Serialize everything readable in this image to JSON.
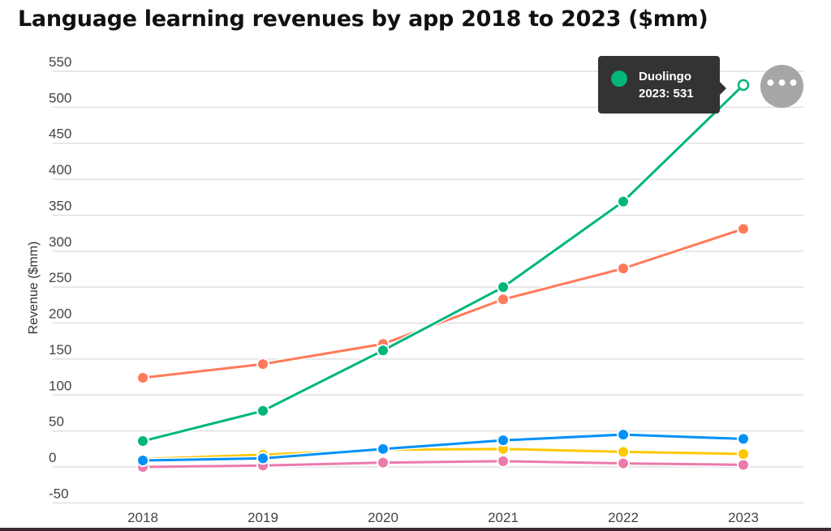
{
  "chart_data": {
    "type": "line",
    "title": "Language learning revenues by app 2018 to 2023 ($mm)",
    "xlabel": "",
    "ylabel": "Revenue ($mm)",
    "categories": [
      "2018",
      "2019",
      "2020",
      "2021",
      "2022",
      "2023"
    ],
    "ylim": [
      -50,
      550
    ],
    "yticks": [
      -50,
      0,
      50,
      100,
      150,
      200,
      250,
      300,
      350,
      400,
      450,
      500,
      550
    ],
    "grid": true,
    "series": [
      {
        "name": "Duolingo",
        "color": "#00b67a",
        "values": [
          36,
          78,
          162,
          250,
          369,
          531
        ]
      },
      {
        "color": "#ff7a59",
        "values": [
          124,
          143,
          171,
          233,
          276,
          331
        ]
      },
      {
        "color": "#0091f7",
        "values": [
          9,
          12,
          25,
          37,
          45,
          39
        ]
      },
      {
        "color": "#ffc700",
        "values": [
          11,
          17,
          24,
          25,
          21,
          18
        ]
      },
      {
        "color": "#ec7aac",
        "values": [
          0,
          2,
          6,
          8,
          5,
          3
        ]
      }
    ],
    "tooltip": {
      "series": "Duolingo",
      "text": "2023: 531"
    }
  },
  "menu_icon": "more-horizontal-icon",
  "menu_label": "•••"
}
